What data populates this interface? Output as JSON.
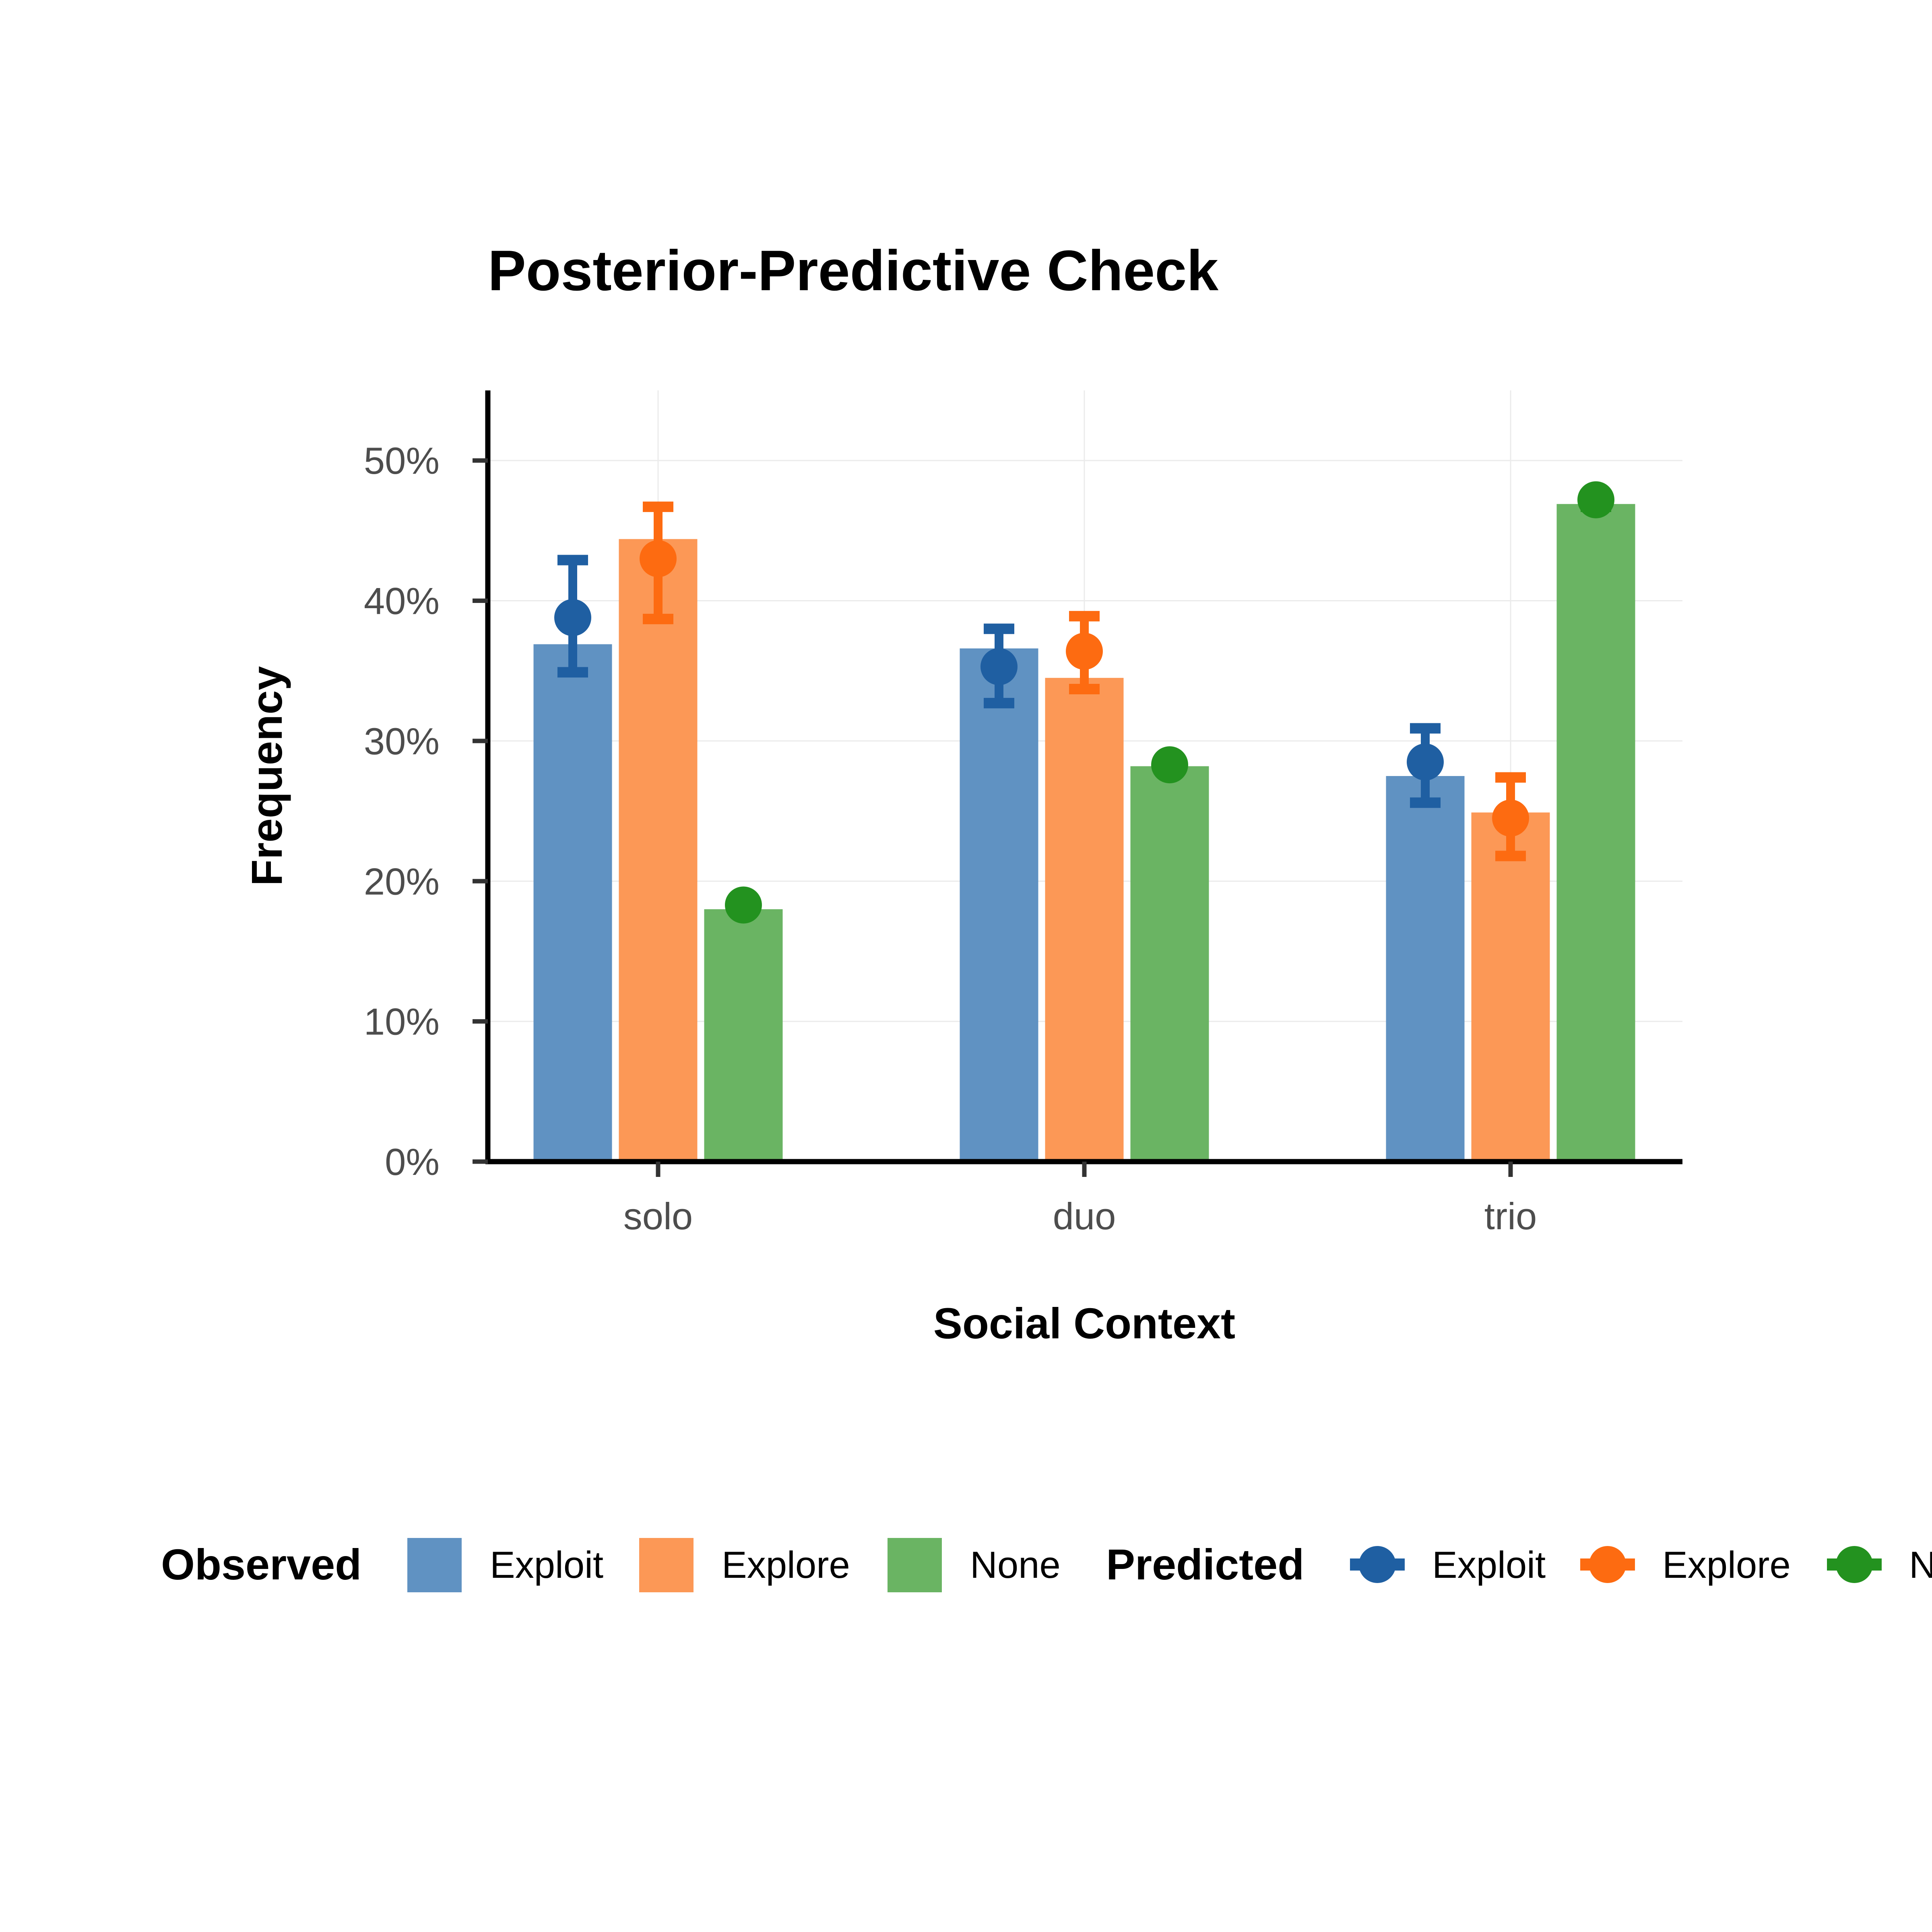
{
  "chart_data": {
    "type": "bar",
    "title": "Posterior-Predictive Check",
    "xlabel": "Social Context",
    "ylabel": "Frequency",
    "categories": [
      "solo",
      "duo",
      "trio"
    ],
    "ylim": [
      0,
      0.55
    ],
    "yticks": [
      0,
      0.1,
      0.2,
      0.3,
      0.4,
      0.5
    ],
    "ytick_labels": [
      "0%",
      "10%",
      "20%",
      "30%",
      "40%",
      "50%"
    ],
    "grid": true,
    "legend_position": "bottom",
    "observed": {
      "legend_title": "Observed",
      "series": [
        {
          "name": "Exploit",
          "color": "#6092c2",
          "values": [
            0.369,
            0.366,
            0.275
          ]
        },
        {
          "name": "Explore",
          "color": "#fc9856",
          "values": [
            0.444,
            0.345,
            0.249
          ]
        },
        {
          "name": "None",
          "color": "#6ab463",
          "values": [
            0.18,
            0.282,
            0.469
          ]
        }
      ]
    },
    "predicted": {
      "legend_title": "Predicted",
      "series": [
        {
          "name": "Exploit",
          "color": "#1f5fa2",
          "mean": [
            0.388,
            0.353,
            0.285
          ],
          "lower": [
            0.349,
            0.327,
            0.256
          ],
          "upper": [
            0.429,
            0.38,
            0.309
          ]
        },
        {
          "name": "Explore",
          "color": "#fd6b11",
          "mean": [
            0.43,
            0.364,
            0.245
          ],
          "lower": [
            0.387,
            0.337,
            0.218
          ],
          "upper": [
            0.467,
            0.389,
            0.274
          ]
        },
        {
          "name": "None",
          "color": "#23921f",
          "mean": [
            0.183,
            0.283,
            0.472
          ],
          "lower": [
            0.183,
            0.283,
            0.467
          ],
          "upper": [
            0.183,
            0.283,
            0.472
          ]
        }
      ]
    }
  }
}
